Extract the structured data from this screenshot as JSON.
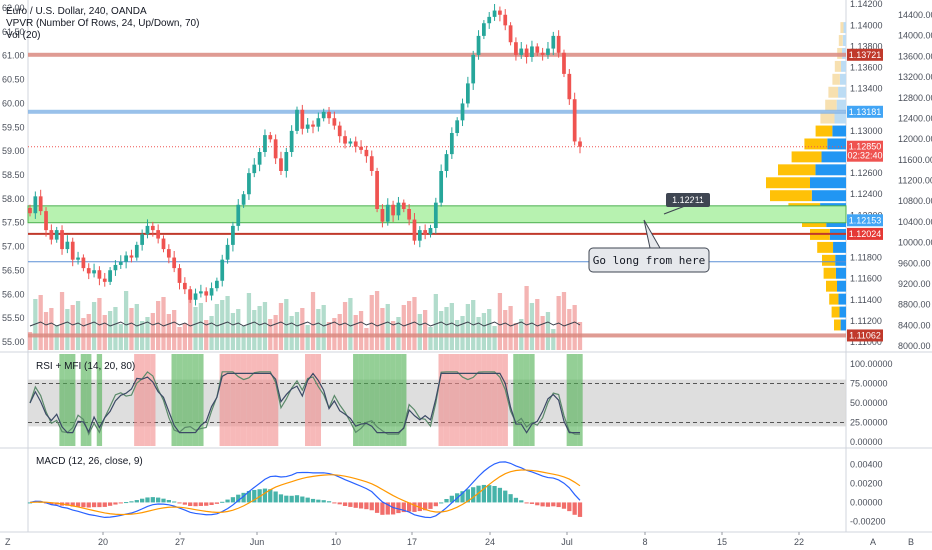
{
  "legend": {
    "symbol": "Euro / U.S. Dollar, 240, OANDA",
    "vpvr": "VPVR (Number Of Rows, 24, Up/Down, 70)",
    "vol": "Vol (20)",
    "rsi_mfi": "RSI + MFI (14, 20, 80)",
    "macd": "MACD (12, 26, close, 9)"
  },
  "annotations": {
    "callout": "Go long from here",
    "marker_price": "1.12211"
  },
  "colors": {
    "up": "#26a69a",
    "down": "#ef5350",
    "zone_fill": "#b7f2b0",
    "zone_border": "#4caf50",
    "blue_line": "#7fb2e5",
    "red_line": "#c0392b",
    "macd_line": "#2962ff",
    "signal_line": "#ff9800",
    "vpvr_up": "#2196f3",
    "vpvr_down": "#ffc107"
  },
  "footer": {
    "left": "Z",
    "right_a": "A",
    "right_b": "B"
  },
  "chart_data": [
    {
      "type": "candlestick",
      "title": "Euro / U.S. Dollar, 240, OANDA",
      "y_left_ticks": [
        "62.00",
        "61.50",
        "61.00",
        "60.50",
        "60.00",
        "59.50",
        "59.00",
        "58.50",
        "58.00",
        "57.50",
        "57.00",
        "56.50",
        "56.00",
        "55.50",
        "55.00"
      ],
      "y_right_ticks": [
        "1.14200",
        "1.14000",
        "1.13800",
        "1.13600",
        "1.13400",
        "1.13200",
        "1.13000",
        "1.12800",
        "1.12600",
        "1.12400",
        "1.12200",
        "1.12000",
        "1.11800",
        "1.11600",
        "1.11400",
        "1.11200",
        "1.11000"
      ],
      "vpvr_ticks": [
        "14400.00",
        "14000.00",
        "13600.00",
        "13200.00",
        "12800.00",
        "12400.00",
        "12000.00",
        "11600.00",
        "11200.00",
        "10800.00",
        "10400.00",
        "10000.00",
        "9600.00",
        "9200.00",
        "8800.00",
        "8400.00",
        "8000.00"
      ],
      "x_ticks": [
        "20",
        "27",
        "Jun",
        "10",
        "17",
        "24",
        "Jul",
        "8",
        "15",
        "22"
      ],
      "price_labels": [
        {
          "text": "1.13721",
          "price": 1.13721,
          "color": "#c0392b"
        },
        {
          "text": "1.13181",
          "price": 1.13181,
          "color": "#42a5f5"
        },
        {
          "text": "1.12850",
          "price": 1.1285,
          "color": "#ef5350"
        },
        {
          "text": "02:32:40",
          "price": 1.12765,
          "color": "#ef5350"
        },
        {
          "text": "1.12153",
          "price": 1.12153,
          "color": "#42a5f5"
        },
        {
          "text": "1.12024",
          "price": 1.12024,
          "color": "#e53935"
        },
        {
          "text": "1.11062",
          "price": 1.11062,
          "color": "#c0392b"
        }
      ],
      "horizontal_levels": [
        {
          "price": 1.13721,
          "kind": "red-band"
        },
        {
          "price": 1.13181,
          "kind": "blue-band"
        },
        {
          "price": 1.1285,
          "kind": "dotted-red"
        },
        {
          "price": 1.12024,
          "kind": "red"
        },
        {
          "price": 1.1176,
          "kind": "blue-thin"
        },
        {
          "price": 1.11062,
          "kind": "red-band"
        }
      ],
      "zone": {
        "top": 1.1229,
        "bottom": 1.1213
      },
      "close_series": [
        1.1222,
        1.1238,
        1.1224,
        1.1206,
        1.1197,
        1.1206,
        1.1188,
        1.1195,
        1.1178,
        1.118,
        1.117,
        1.1165,
        1.1168,
        1.116,
        1.1157,
        1.1168,
        1.1173,
        1.1176,
        1.1182,
        1.118,
        1.1192,
        1.1202,
        1.121,
        1.1206,
        1.1198,
        1.1188,
        1.118,
        1.117,
        1.1156,
        1.115,
        1.114,
        1.1146,
        1.1148,
        1.1144,
        1.1151,
        1.1158,
        1.1178,
        1.1192,
        1.121,
        1.123,
        1.124,
        1.126,
        1.1268,
        1.128,
        1.1296,
        1.1292,
        1.1274,
        1.1262,
        1.128,
        1.13,
        1.132,
        1.1302,
        1.1306,
        1.1304,
        1.1312,
        1.1318,
        1.1312,
        1.1305,
        1.1295,
        1.1288,
        1.129,
        1.1285,
        1.1282,
        1.1276,
        1.1262,
        1.1226,
        1.1214,
        1.123,
        1.122,
        1.1232,
        1.1226,
        1.1216,
        1.1196,
        1.1206,
        1.1202,
        1.1208,
        1.1232,
        1.1262,
        1.1278,
        1.1298,
        1.131,
        1.1326,
        1.1345,
        1.1372,
        1.139,
        1.1402,
        1.1408,
        1.1414,
        1.141,
        1.14,
        1.1384,
        1.1372,
        1.1378,
        1.137,
        1.138,
        1.1374,
        1.1372,
        1.1378,
        1.139,
        1.1374,
        1.1354,
        1.133,
        1.129,
        1.1285
      ],
      "volume_note": "volume bars drawn along bottom of main pane",
      "vpvr_profile": [
        0.15,
        0.18,
        0.21,
        0.25,
        0.28,
        0.3,
        0.36,
        0.45,
        0.55,
        0.72,
        0.95,
        1.0,
        0.85,
        0.68,
        0.52,
        0.38,
        0.32,
        0.26,
        0.22,
        0.17,
        0.14,
        0.11,
        0.09,
        0.07
      ]
    },
    {
      "type": "line",
      "title": "RSI + MFI (14, 20, 80)",
      "y_ticks": [
        "100.00000",
        "75.00000",
        "50.00000",
        "25.00000",
        "0.00000"
      ],
      "ylim": [
        0,
        100
      ],
      "band": [
        20,
        80
      ],
      "dashed_levels": [
        75,
        25
      ]
    },
    {
      "type": "line",
      "title": "MACD (12, 26, close, 9)",
      "y_ticks": [
        "0.00400",
        "0.00200",
        "0.00000",
        "-0.00200"
      ],
      "ylim": [
        -0.0025,
        0.0045
      ]
    }
  ]
}
